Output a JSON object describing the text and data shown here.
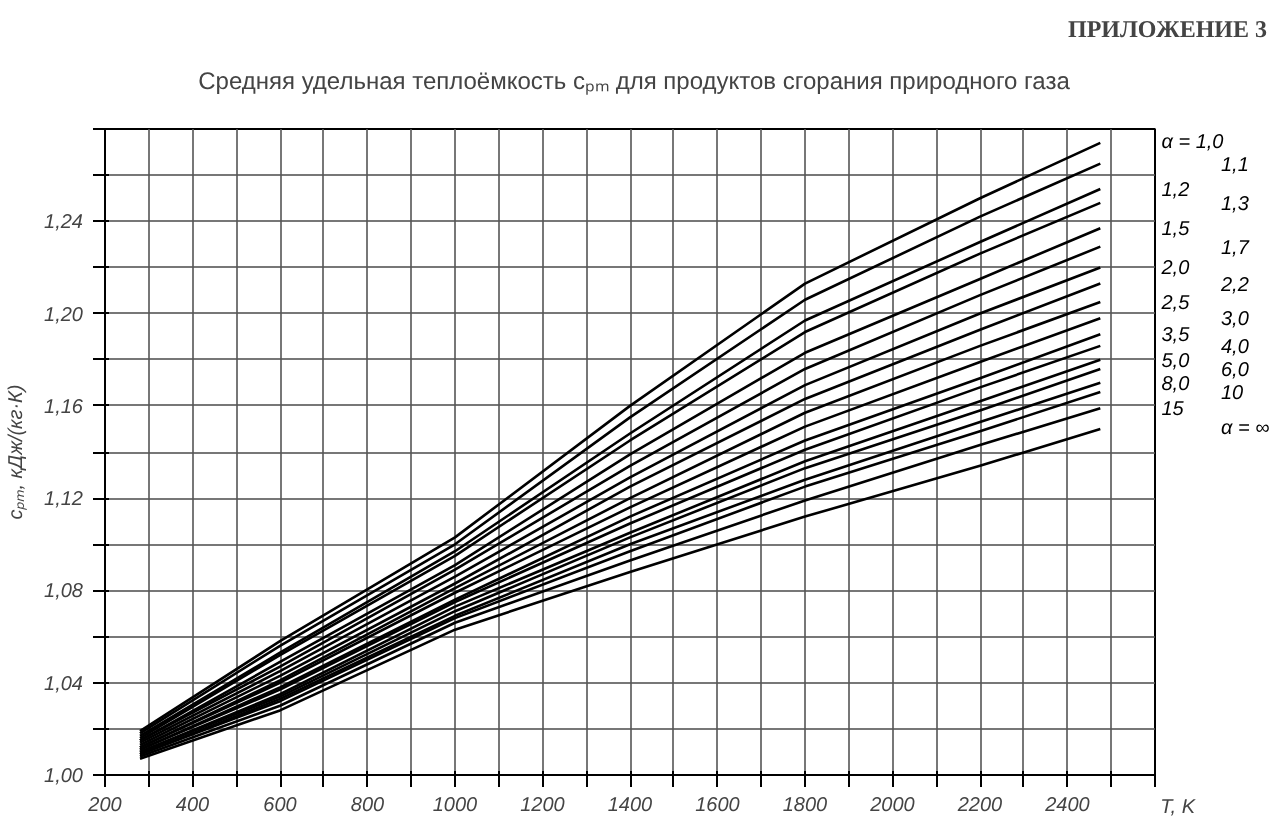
{
  "chart_data": {
    "type": "line",
    "title": "Средняя удельная теплоёмкость cₚₘ для продуктов сгорания природного газа",
    "xlabel": "T, K",
    "ylabel": "cₚₘ, кДж/(кг·К)",
    "annotations": [
      "ПРИЛОЖЕНИЕ 3"
    ],
    "x": [
      280,
      600,
      1000,
      1400,
      1800,
      2200,
      2475
    ],
    "xlim": [
      200,
      2600
    ],
    "ylim": [
      1.0,
      1.28
    ],
    "xticks": [
      200,
      {
        "value": 300,
        "label": null
      },
      400,
      {
        "value": 500,
        "label": null
      },
      600,
      {
        "value": 700,
        "label": null
      },
      800,
      {
        "value": 900,
        "label": null
      },
      1000,
      {
        "value": 1100,
        "label": null
      },
      1200,
      {
        "value": 1300,
        "label": null
      },
      1400,
      {
        "value": 1500,
        "label": null
      },
      1600,
      {
        "value": 1700,
        "label": null
      },
      1800,
      {
        "value": 1900,
        "label": null
      },
      2000,
      {
        "value": 2100,
        "label": null
      },
      2200,
      {
        "value": 2300,
        "label": null
      },
      2400,
      {
        "value": 2500,
        "label": null
      },
      {
        "value": 2600,
        "label": null
      }
    ],
    "yticks": [
      {
        "value": 1.0,
        "label": "1,00"
      },
      {
        "value": 1.02,
        "label": null
      },
      {
        "value": 1.04,
        "label": "1,04"
      },
      {
        "value": 1.06,
        "label": null
      },
      {
        "value": 1.08,
        "label": "1,08"
      },
      {
        "value": 1.1,
        "label": null
      },
      {
        "value": 1.12,
        "label": "1,12"
      },
      {
        "value": 1.14,
        "label": null
      },
      {
        "value": 1.16,
        "label": "1,16"
      },
      {
        "value": 1.18,
        "label": null
      },
      {
        "value": 1.2,
        "label": "1,20"
      },
      {
        "value": 1.22,
        "label": null
      },
      {
        "value": 1.24,
        "label": "1,24"
      },
      {
        "value": 1.26,
        "label": null
      },
      {
        "value": 1.28,
        "label": null
      }
    ],
    "grid": true,
    "legend": false,
    "marker": "none",
    "line_style": "solid",
    "series": [
      {
        "name": "α = 1,0",
        "color": "#000000",
        "values": [
          1.019,
          1.058,
          1.103,
          1.16,
          1.213,
          1.25,
          1.274
        ]
      },
      {
        "name": "1,1",
        "color": "#000000",
        "values": [
          1.018,
          1.056,
          1.1,
          1.155,
          1.206,
          1.242,
          1.265
        ]
      },
      {
        "name": "1,2",
        "color": "#000000",
        "values": [
          1.017,
          1.053,
          1.097,
          1.148,
          1.197,
          1.231,
          1.254
        ]
      },
      {
        "name": "1,3",
        "color": "#000000",
        "values": [
          1.016,
          1.052,
          1.095,
          1.145,
          1.192,
          1.226,
          1.248
        ]
      },
      {
        "name": "1,5",
        "color": "#000000",
        "values": [
          1.015,
          1.049,
          1.091,
          1.139,
          1.183,
          1.215,
          1.237
        ]
      },
      {
        "name": "1,7",
        "color": "#000000",
        "values": [
          1.015,
          1.047,
          1.089,
          1.134,
          1.176,
          1.208,
          1.229
        ]
      },
      {
        "name": "2,0",
        "color": "#000000",
        "values": [
          1.014,
          1.045,
          1.086,
          1.129,
          1.169,
          1.2,
          1.22
        ]
      },
      {
        "name": "2,2",
        "color": "#000000",
        "values": [
          1.013,
          1.043,
          1.083,
          1.125,
          1.163,
          1.193,
          1.213
        ]
      },
      {
        "name": "2,5",
        "color": "#000000",
        "values": [
          1.012,
          1.041,
          1.081,
          1.12,
          1.157,
          1.186,
          1.205
        ]
      },
      {
        "name": "3,0",
        "color": "#000000",
        "values": [
          1.012,
          1.04,
          1.079,
          1.116,
          1.151,
          1.179,
          1.198
        ]
      },
      {
        "name": "3,5",
        "color": "#000000",
        "values": [
          1.011,
          1.038,
          1.076,
          1.112,
          1.145,
          1.172,
          1.191
        ]
      },
      {
        "name": "4,0",
        "color": "#000000",
        "values": [
          1.011,
          1.037,
          1.075,
          1.109,
          1.141,
          1.168,
          1.186
        ]
      },
      {
        "name": "5,0",
        "color": "#000000",
        "values": [
          1.01,
          1.035,
          1.073,
          1.105,
          1.136,
          1.162,
          1.18
        ]
      },
      {
        "name": "6,0",
        "color": "#000000",
        "values": [
          1.01,
          1.034,
          1.071,
          1.103,
          1.133,
          1.158,
          1.176
        ]
      },
      {
        "name": "8,0",
        "color": "#000000",
        "values": [
          1.009,
          1.033,
          1.069,
          1.1,
          1.128,
          1.153,
          1.17
        ]
      },
      {
        "name": "10",
        "color": "#000000",
        "values": [
          1.009,
          1.032,
          1.068,
          1.097,
          1.125,
          1.149,
          1.166
        ]
      },
      {
        "name": "15",
        "color": "#000000",
        "values": [
          1.008,
          1.03,
          1.066,
          1.093,
          1.119,
          1.143,
          1.159
        ]
      },
      {
        "name": "α = ∞",
        "color": "#000000",
        "values": [
          1.007,
          1.028,
          1.063,
          1.088,
          1.112,
          1.134,
          1.15
        ]
      }
    ]
  }
}
